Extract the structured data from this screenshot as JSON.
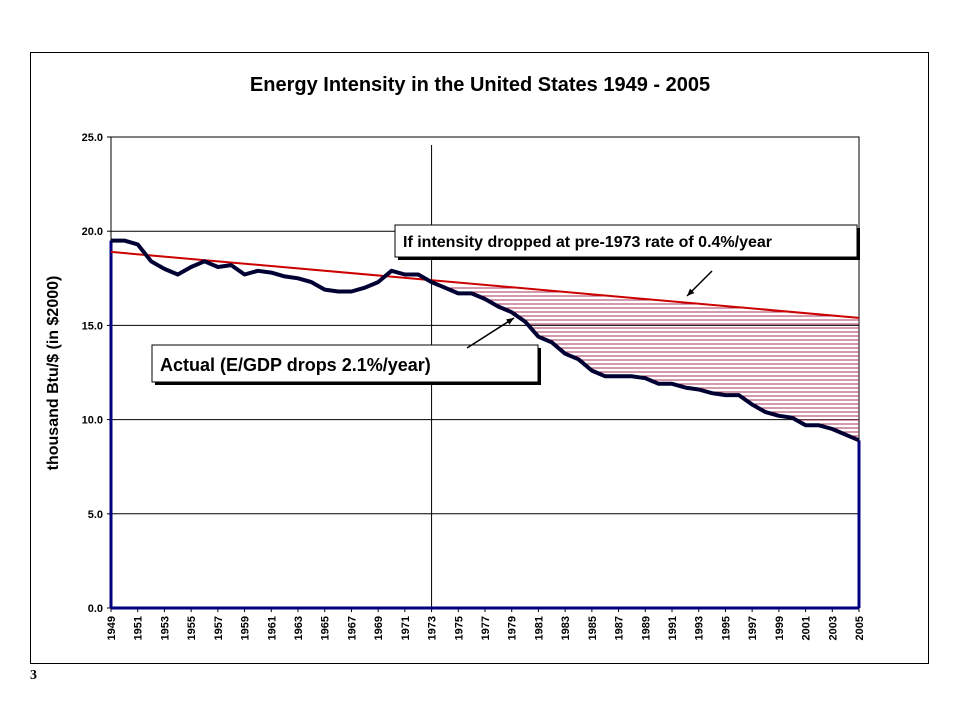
{
  "slide": {
    "number": "3"
  },
  "colors": {
    "actual": "#000033",
    "trend": "#cc0000",
    "hatch": "#aa3355",
    "grid": "#000000",
    "axis_fill": "#000080"
  },
  "chart_data": {
    "type": "line",
    "title": "Energy Intensity in the United States 1949 - 2005",
    "ylabel": "thousand Btu/$ (in $2000)",
    "xlabel": "",
    "ylim": [
      0,
      25
    ],
    "yticks": [
      "0.0",
      "5.0",
      "10.0",
      "15.0",
      "20.0",
      "25.0"
    ],
    "xticks": [
      "1949",
      "1951",
      "1953",
      "1955",
      "1957",
      "1959",
      "1961",
      "1963",
      "1965",
      "1967",
      "1969",
      "1971",
      "1973",
      "1975",
      "1977",
      "1979",
      "1981",
      "1983",
      "1985",
      "1987",
      "1989",
      "1991",
      "1993",
      "1995",
      "1997",
      "1999",
      "2001",
      "2003",
      "2005"
    ],
    "reference_line_year": 1973,
    "grid": true,
    "series": [
      {
        "name": "Actual (E/GDP drops 2.1%/year)",
        "x": [
          1949,
          1950,
          1951,
          1952,
          1953,
          1954,
          1955,
          1956,
          1957,
          1958,
          1959,
          1960,
          1961,
          1962,
          1963,
          1964,
          1965,
          1966,
          1967,
          1968,
          1969,
          1970,
          1971,
          1972,
          1973,
          1974,
          1975,
          1976,
          1977,
          1978,
          1979,
          1980,
          1981,
          1982,
          1983,
          1984,
          1985,
          1986,
          1987,
          1988,
          1989,
          1990,
          1991,
          1992,
          1993,
          1994,
          1995,
          1996,
          1997,
          1998,
          1999,
          2000,
          2001,
          2002,
          2003,
          2004,
          2005
        ],
        "y": [
          19.5,
          19.5,
          19.3,
          18.4,
          18.0,
          17.7,
          18.1,
          18.4,
          18.1,
          18.2,
          17.7,
          17.9,
          17.8,
          17.6,
          17.5,
          17.3,
          16.9,
          16.8,
          16.8,
          17.0,
          17.3,
          17.9,
          17.7,
          17.7,
          17.3,
          17.0,
          16.7,
          16.7,
          16.4,
          16.0,
          15.7,
          15.2,
          14.4,
          14.1,
          13.5,
          13.2,
          12.6,
          12.3,
          12.3,
          12.3,
          12.2,
          11.9,
          11.9,
          11.7,
          11.6,
          11.4,
          11.3,
          11.3,
          10.8,
          10.4,
          10.2,
          10.1,
          9.7,
          9.7,
          9.5,
          9.2,
          8.9
        ]
      },
      {
        "name": "If intensity dropped at pre-1973 rate of 0.4%/year",
        "x": [
          1949,
          2005
        ],
        "y": [
          18.9,
          15.4
        ]
      }
    ],
    "annotations": [
      "If intensity dropped at pre-1973  rate of  0.4%/year",
      "Actual (E/GDP drops 2.1%/year)"
    ]
  }
}
